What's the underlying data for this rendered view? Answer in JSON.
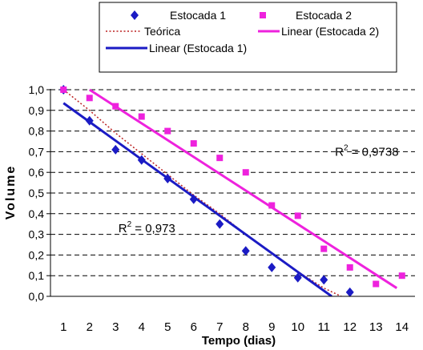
{
  "chart_data": {
    "type": "scatter",
    "xlabel": "Tempo (dias)",
    "ylabel": "Volume",
    "xlim": [
      0.5,
      14.5
    ],
    "ylim": [
      0,
      1.0
    ],
    "x_ticks": [
      "1",
      "2",
      "3",
      "4",
      "5",
      "6",
      "7",
      "8",
      "9",
      "10",
      "11",
      "12",
      "13",
      "14"
    ],
    "y_ticks": [
      "0,0",
      "0,1",
      "0,2",
      "0,3",
      "0,4",
      "0,5",
      "0,6",
      "0,7",
      "0,8",
      "0,9",
      "1,0"
    ],
    "grid": "horizontal-dashed",
    "legend_position": "top",
    "series": [
      {
        "name": "Estocada 1",
        "kind": "points",
        "marker": "diamond",
        "color": "#1b1bc4",
        "x": [
          1,
          2,
          3,
          4,
          5,
          6,
          7,
          8,
          9,
          10,
          11,
          12
        ],
        "y": [
          1.0,
          0.85,
          0.71,
          0.66,
          0.57,
          0.47,
          0.35,
          0.22,
          0.14,
          0.09,
          0.08,
          0.02
        ]
      },
      {
        "name": "Estocada 2",
        "kind": "points",
        "marker": "square",
        "color": "#ee22dd",
        "x": [
          1,
          2,
          3,
          4,
          5,
          6,
          7,
          8,
          9,
          10,
          11,
          12,
          13,
          14
        ],
        "y": [
          1.0,
          0.96,
          0.92,
          0.87,
          0.8,
          0.74,
          0.67,
          0.6,
          0.44,
          0.39,
          0.23,
          0.14,
          0.06,
          0.1
        ]
      },
      {
        "name": "Teórica",
        "kind": "line",
        "style": "dotted",
        "color": "#bb2222",
        "x": [
          1,
          2,
          3,
          4,
          5,
          6,
          7,
          8,
          9,
          10,
          11,
          12,
          13
        ],
        "y": [
          1.0,
          0.9,
          0.79,
          0.69,
          0.59,
          0.49,
          0.4,
          0.3,
          0.21,
          0.12,
          0.04,
          -0.02,
          -0.05
        ]
      },
      {
        "name": "Linear (Estocada 2)",
        "kind": "line",
        "style": "solid",
        "color": "#ee22dd",
        "x": [
          2,
          13.8
        ],
        "y": [
          1.0,
          0.04
        ]
      },
      {
        "name": "Linear (Estocada 1)",
        "kind": "line",
        "style": "solid",
        "color": "#1b1bc4",
        "x": [
          1,
          11.3
        ],
        "y": [
          0.935,
          0.0
        ]
      }
    ],
    "annotations": [
      {
        "label": "R",
        "sup": "2",
        "value": " = 0,9738",
        "x": 12.65,
        "y": 0.68
      },
      {
        "label": "R",
        "sup": "2",
        "value": " = 0,973",
        "x": 4.2,
        "y": 0.31
      }
    ]
  }
}
